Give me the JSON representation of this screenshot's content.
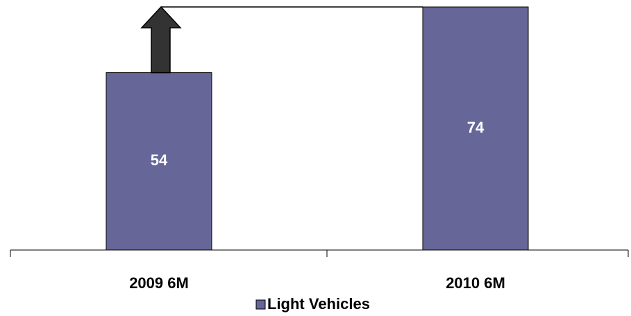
{
  "chart_data": {
    "type": "bar",
    "categories": [
      "2009 6M",
      "2010 6M"
    ],
    "series": [
      {
        "name": "Light Vehicles",
        "color": "#666699",
        "values": [
          54,
          74
        ]
      }
    ]
  }
}
